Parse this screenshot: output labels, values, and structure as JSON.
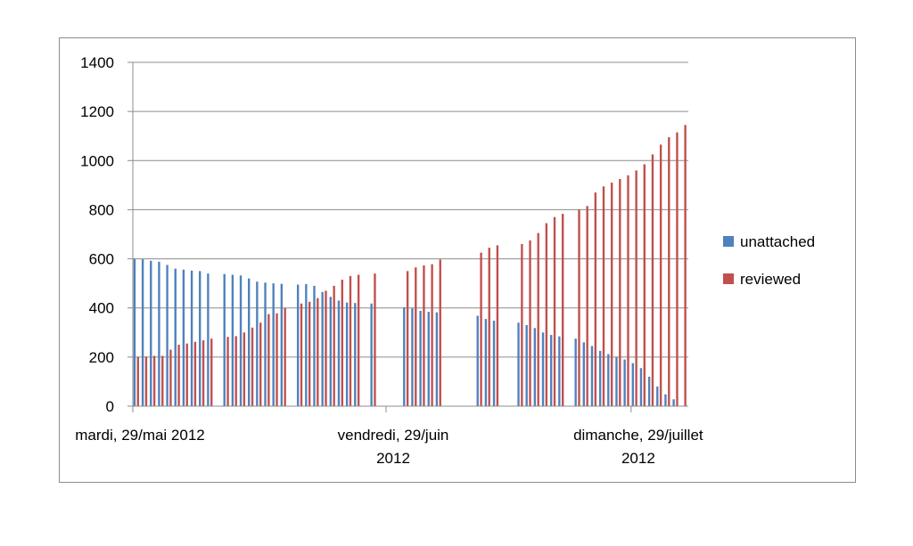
{
  "chart_data": {
    "type": "bar",
    "title": "",
    "xlabel": "",
    "ylabel": "",
    "ylim": [
      0,
      1400
    ],
    "yticks": [
      0,
      200,
      400,
      600,
      800,
      1000,
      1200,
      1400
    ],
    "grid": true,
    "legend_position": "right",
    "x_tick_labels": [
      {
        "lines": [
          "mardi, 29/mai 2012"
        ],
        "x": "2012-05-29"
      },
      {
        "lines": [
          "vendredi, 29/juin",
          "2012"
        ],
        "x": "2012-06-29"
      },
      {
        "lines": [
          "dimanche, 29/juillet",
          "2012"
        ],
        "x": "2012-07-29"
      }
    ],
    "x_range": [
      "2012-05-29",
      "2012-08-05"
    ],
    "series": [
      {
        "name": "unattached",
        "color": "#4f81bd",
        "points": [
          {
            "x": "2012-05-29",
            "y": 600
          },
          {
            "x": "2012-05-30",
            "y": 598
          },
          {
            "x": "2012-05-31",
            "y": 592
          },
          {
            "x": "2012-06-01",
            "y": 588
          },
          {
            "x": "2012-06-02",
            "y": 575
          },
          {
            "x": "2012-06-03",
            "y": 560
          },
          {
            "x": "2012-06-04",
            "y": 556
          },
          {
            "x": "2012-06-05",
            "y": 552
          },
          {
            "x": "2012-06-06",
            "y": 550
          },
          {
            "x": "2012-06-07",
            "y": 540
          },
          {
            "x": "2012-06-09",
            "y": 538
          },
          {
            "x": "2012-06-10",
            "y": 535
          },
          {
            "x": "2012-06-11",
            "y": 532
          },
          {
            "x": "2012-06-12",
            "y": 520
          },
          {
            "x": "2012-06-13",
            "y": 507
          },
          {
            "x": "2012-06-14",
            "y": 503
          },
          {
            "x": "2012-06-15",
            "y": 500
          },
          {
            "x": "2012-06-16",
            "y": 498
          },
          {
            "x": "2012-06-18",
            "y": 495
          },
          {
            "x": "2012-06-19",
            "y": 497
          },
          {
            "x": "2012-06-20",
            "y": 490
          },
          {
            "x": "2012-06-21",
            "y": 465
          },
          {
            "x": "2012-06-22",
            "y": 445
          },
          {
            "x": "2012-06-23",
            "y": 430
          },
          {
            "x": "2012-06-24",
            "y": 422
          },
          {
            "x": "2012-06-25",
            "y": 420
          },
          {
            "x": "2012-06-27",
            "y": 418
          },
          {
            "x": "2012-07-01",
            "y": 403
          },
          {
            "x": "2012-07-02",
            "y": 398
          },
          {
            "x": "2012-07-03",
            "y": 388
          },
          {
            "x": "2012-07-04",
            "y": 384
          },
          {
            "x": "2012-07-05",
            "y": 382
          },
          {
            "x": "2012-07-10",
            "y": 368
          },
          {
            "x": "2012-07-11",
            "y": 355
          },
          {
            "x": "2012-07-12",
            "y": 348
          },
          {
            "x": "2012-07-15",
            "y": 340
          },
          {
            "x": "2012-07-16",
            "y": 330
          },
          {
            "x": "2012-07-17",
            "y": 318
          },
          {
            "x": "2012-07-18",
            "y": 300
          },
          {
            "x": "2012-07-19",
            "y": 290
          },
          {
            "x": "2012-07-20",
            "y": 284
          },
          {
            "x": "2012-07-22",
            "y": 275
          },
          {
            "x": "2012-07-23",
            "y": 260
          },
          {
            "x": "2012-07-24",
            "y": 245
          },
          {
            "x": "2012-07-25",
            "y": 225
          },
          {
            "x": "2012-07-26",
            "y": 212
          },
          {
            "x": "2012-07-27",
            "y": 200
          },
          {
            "x": "2012-07-28",
            "y": 190
          },
          {
            "x": "2012-07-29",
            "y": 175
          },
          {
            "x": "2012-07-30",
            "y": 155
          },
          {
            "x": "2012-07-31",
            "y": 120
          },
          {
            "x": "2012-08-01",
            "y": 80
          },
          {
            "x": "2012-08-02",
            "y": 48
          },
          {
            "x": "2012-08-03",
            "y": 28
          }
        ]
      },
      {
        "name": "reviewed",
        "color": "#c0504d",
        "points": [
          {
            "x": "2012-05-29",
            "y": 200
          },
          {
            "x": "2012-05-30",
            "y": 202
          },
          {
            "x": "2012-05-31",
            "y": 205
          },
          {
            "x": "2012-06-01",
            "y": 205
          },
          {
            "x": "2012-06-02",
            "y": 230
          },
          {
            "x": "2012-06-03",
            "y": 250
          },
          {
            "x": "2012-06-04",
            "y": 255
          },
          {
            "x": "2012-06-05",
            "y": 262
          },
          {
            "x": "2012-06-06",
            "y": 268
          },
          {
            "x": "2012-06-07",
            "y": 275
          },
          {
            "x": "2012-06-09",
            "y": 282
          },
          {
            "x": "2012-06-10",
            "y": 285
          },
          {
            "x": "2012-06-11",
            "y": 300
          },
          {
            "x": "2012-06-12",
            "y": 320
          },
          {
            "x": "2012-06-13",
            "y": 340
          },
          {
            "x": "2012-06-14",
            "y": 375
          },
          {
            "x": "2012-06-15",
            "y": 378
          },
          {
            "x": "2012-06-16",
            "y": 400
          },
          {
            "x": "2012-06-18",
            "y": 418
          },
          {
            "x": "2012-06-19",
            "y": 425
          },
          {
            "x": "2012-06-20",
            "y": 440
          },
          {
            "x": "2012-06-21",
            "y": 470
          },
          {
            "x": "2012-06-22",
            "y": 490
          },
          {
            "x": "2012-06-23",
            "y": 515
          },
          {
            "x": "2012-06-24",
            "y": 530
          },
          {
            "x": "2012-06-25",
            "y": 535
          },
          {
            "x": "2012-06-27",
            "y": 540
          },
          {
            "x": "2012-07-01",
            "y": 550
          },
          {
            "x": "2012-07-02",
            "y": 565
          },
          {
            "x": "2012-07-03",
            "y": 573
          },
          {
            "x": "2012-07-04",
            "y": 578
          },
          {
            "x": "2012-07-05",
            "y": 597
          },
          {
            "x": "2012-07-10",
            "y": 625
          },
          {
            "x": "2012-07-11",
            "y": 645
          },
          {
            "x": "2012-07-12",
            "y": 655
          },
          {
            "x": "2012-07-15",
            "y": 660
          },
          {
            "x": "2012-07-16",
            "y": 675
          },
          {
            "x": "2012-07-17",
            "y": 705
          },
          {
            "x": "2012-07-18",
            "y": 745
          },
          {
            "x": "2012-07-19",
            "y": 770
          },
          {
            "x": "2012-07-20",
            "y": 783
          },
          {
            "x": "2012-07-22",
            "y": 800
          },
          {
            "x": "2012-07-23",
            "y": 815
          },
          {
            "x": "2012-07-24",
            "y": 870
          },
          {
            "x": "2012-07-25",
            "y": 895
          },
          {
            "x": "2012-07-26",
            "y": 910
          },
          {
            "x": "2012-07-27",
            "y": 925
          },
          {
            "x": "2012-07-28",
            "y": 940
          },
          {
            "x": "2012-07-29",
            "y": 960
          },
          {
            "x": "2012-07-30",
            "y": 985
          },
          {
            "x": "2012-07-31",
            "y": 1025
          },
          {
            "x": "2012-08-01",
            "y": 1065
          },
          {
            "x": "2012-08-02",
            "y": 1095
          },
          {
            "x": "2012-08-03",
            "y": 1115
          },
          {
            "x": "2012-08-04",
            "y": 1145
          }
        ]
      }
    ]
  }
}
